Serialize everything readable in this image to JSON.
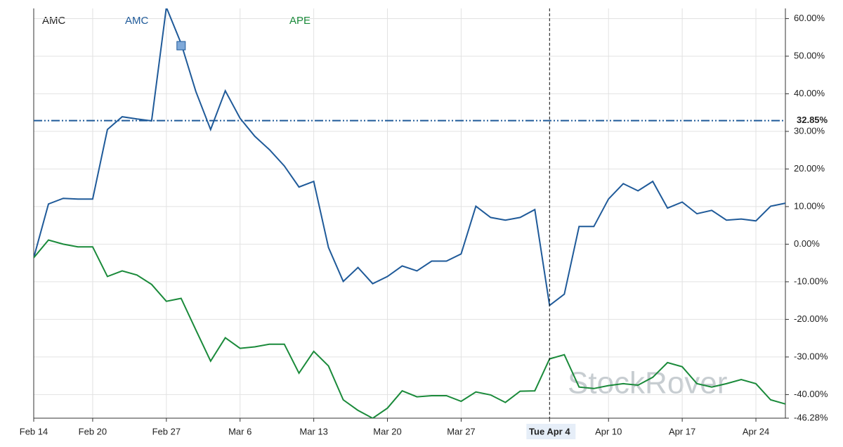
{
  "chart_data": {
    "type": "line",
    "title": "AMC",
    "watermark": "StockRover",
    "categories": [
      "Feb 14",
      null,
      null,
      null,
      "Feb 20",
      null,
      null,
      null,
      null,
      "Feb 27",
      null,
      null,
      null,
      null,
      "Mar 6",
      null,
      null,
      null,
      null,
      "Mar 13",
      null,
      null,
      null,
      null,
      "Mar 20",
      null,
      null,
      null,
      null,
      "Mar 27",
      null,
      null,
      null,
      null,
      null,
      "Tue Apr 4",
      null,
      null,
      null,
      "Apr 10",
      null,
      null,
      null,
      null,
      "Apr 17",
      null,
      null,
      null,
      null,
      "Apr 24",
      null,
      null
    ],
    "series": [
      {
        "name": "AMC",
        "color": "#1f5a99",
        "values": [
          -3.6,
          10.7,
          12.2,
          12.0,
          12.0,
          30.5,
          33.9,
          33.3,
          32.8,
          63.0,
          53.4,
          40.6,
          30.5,
          40.8,
          33.5,
          28.7,
          25.1,
          20.8,
          15.2,
          16.7,
          -0.9,
          -9.9,
          -6.2,
          -10.5,
          -8.6,
          -5.8,
          -7.1,
          -4.5,
          -4.5,
          -2.6,
          10.1,
          7.1,
          6.4,
          7.1,
          9.2,
          -16.3,
          -13.3,
          4.7,
          4.7,
          12.0,
          16.1,
          14.2,
          16.7,
          9.6,
          11.2,
          8.1,
          9.0,
          6.4,
          6.7,
          6.2,
          10.1,
          10.9
        ]
      },
      {
        "name": "APE",
        "color": "#1a8a3a",
        "values": [
          -3.6,
          1.1,
          0,
          -0.7,
          -0.7,
          -8.6,
          -7.1,
          -8.2,
          -10.7,
          -15.2,
          -14.4,
          -22.8,
          -31.1,
          -24.9,
          -27.7,
          -27.3,
          -26.6,
          -26.6,
          -34.3,
          -28.5,
          -32.4,
          -41.4,
          -44.2,
          -46.3,
          -43.6,
          -39.0,
          -40.6,
          -40.3,
          -40.3,
          -41.8,
          -39.3,
          -40.1,
          -42.1,
          -39.1,
          -39.0,
          -30.5,
          -29.4,
          -38.0,
          -38.4,
          -37.6,
          -37.1,
          -37.5,
          -35.4,
          -31.5,
          -32.6,
          -37.1,
          -38.0,
          -37.1,
          -36.0,
          -37.1,
          -41.4,
          -42.5
        ]
      }
    ],
    "ylim": [
      -46.28,
      62.7
    ],
    "yticks": [
      {
        "value": 60,
        "label": "60.00%"
      },
      {
        "value": 50,
        "label": "50.00%"
      },
      {
        "value": 40,
        "label": "40.00%"
      },
      {
        "value": 30,
        "label": "30.00%"
      },
      {
        "value": 20,
        "label": "20.00%"
      },
      {
        "value": 10,
        "label": "10.00%"
      },
      {
        "value": 0,
        "label": "0.00%"
      },
      {
        "value": -10,
        "label": "-10.00%"
      },
      {
        "value": -20,
        "label": "-20.00%"
      },
      {
        "value": -30,
        "label": "-30.00%"
      },
      {
        "value": -40,
        "label": "-40.00%"
      },
      {
        "value": -46.28,
        "label": "-46.28%"
      }
    ],
    "reference_line": {
      "value": 32.85,
      "label": "32.85%"
    },
    "crosshair_x": 35,
    "grid": true
  }
}
